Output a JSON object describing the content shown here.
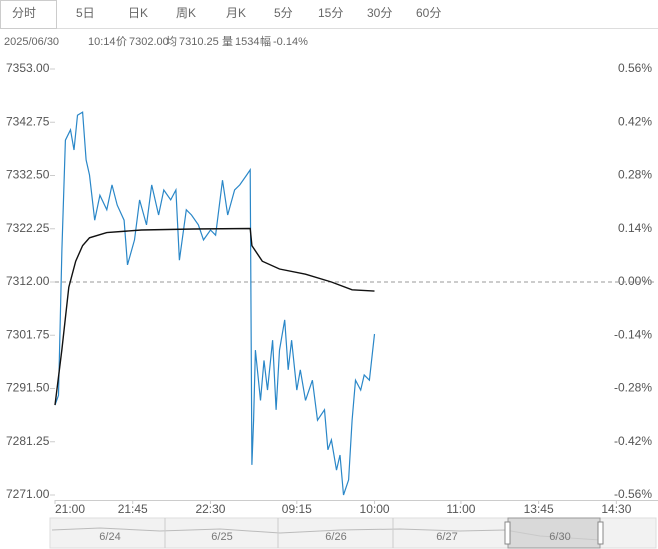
{
  "tabs": [
    "分时",
    "5日",
    "日K",
    "周K",
    "月K",
    "5分",
    "15分",
    "30分",
    "60分"
  ],
  "active_tab": 0,
  "info": {
    "date": "2025/06/30",
    "time": "10:14",
    "price_label": "价",
    "price": "7302.00",
    "avg_label": "均",
    "avg": "7310.25",
    "vol_label": "量",
    "vol": "1534",
    "amp_label": "幅",
    "amp": "-0.14%"
  },
  "chart_data": {
    "type": "line",
    "xlim": [
      0,
      330
    ],
    "xticks": [
      {
        "value": 0,
        "label": "21:00"
      },
      {
        "value": 45,
        "label": "21:45"
      },
      {
        "value": 90,
        "label": "22:30"
      },
      {
        "value": 140,
        "label": "09:15"
      },
      {
        "value": 185,
        "label": "10:00"
      },
      {
        "value": 235,
        "label": "11:00"
      },
      {
        "value": 280,
        "label": "13:45"
      },
      {
        "value": 325,
        "label": "14:30"
      }
    ],
    "ylim": [
      7271,
      7353
    ],
    "yticks": [
      {
        "value": 7271,
        "label": "7271.00"
      },
      {
        "value": 7281.25,
        "label": "7281.25"
      },
      {
        "value": 7291.5,
        "label": "7291.50"
      },
      {
        "value": 7301.75,
        "label": "7301.75"
      },
      {
        "value": 7312,
        "label": "7312.00"
      },
      {
        "value": 7322.25,
        "label": "7322.25"
      },
      {
        "value": 7332.5,
        "label": "7332.50"
      },
      {
        "value": 7342.75,
        "label": "7342.75"
      },
      {
        "value": 7353,
        "label": "7353.00"
      }
    ],
    "y2lim": [
      -0.56,
      0.56
    ],
    "y2ticks": [
      {
        "value": -0.56,
        "label": "-0.56%"
      },
      {
        "value": -0.42,
        "label": "-0.42%"
      },
      {
        "value": -0.28,
        "label": "-0.28%"
      },
      {
        "value": -0.14,
        "label": "-0.14%"
      },
      {
        "value": 0,
        "label": "0.00%"
      },
      {
        "value": 0.14,
        "label": "0.14%"
      },
      {
        "value": 0.28,
        "label": "0.28%"
      },
      {
        "value": 0.42,
        "label": "0.42%"
      },
      {
        "value": 0.56,
        "label": "0.56%"
      }
    ],
    "reference_line": 7312,
    "up_color": "#e02020",
    "down_color": "#1aa01a",
    "series": [
      {
        "color": "#2a87c8",
        "x": [
          0,
          2,
          4,
          6,
          9,
          11,
          13,
          16,
          18,
          20,
          23,
          26,
          30,
          33,
          36,
          40,
          42,
          46,
          49,
          53,
          56,
          60,
          63,
          67,
          70,
          72,
          76,
          79,
          83,
          86,
          90,
          93,
          97,
          100,
          104,
          107,
          111,
          113,
          114,
          115,
          116,
          119,
          121,
          123,
          126,
          128,
          130,
          133,
          135,
          137,
          140,
          142,
          145,
          149,
          152,
          156,
          158,
          160,
          163,
          165,
          167,
          170,
          172,
          174,
          177,
          179,
          182,
          185
        ],
        "values": [
          7288.3,
          7290.2,
          7318.2,
          7339.3,
          7341.3,
          7337.4,
          7344.1,
          7344.7,
          7335.5,
          7332.6,
          7323.9,
          7328.7,
          7325.9,
          7330.7,
          7326.8,
          7323.9,
          7315.3,
          7320.1,
          7327.8,
          7323,
          7330.7,
          7324.9,
          7329.7,
          7327.8,
          7329.7,
          7316.2,
          7325.9,
          7324.9,
          7323,
          7320.1,
          7322,
          7321,
          7331.6,
          7324.9,
          7329.7,
          7330.7,
          7332.6,
          7333.6,
          7276.8,
          7285.4,
          7298.9,
          7289.2,
          7296.9,
          7291.2,
          7300.8,
          7287.4,
          7298.9,
          7304.7,
          7295.1,
          7300.8,
          7291.2,
          7295.1,
          7289.2,
          7293.1,
          7285.4,
          7287.4,
          7279.7,
          7281.6,
          7275.8,
          7278.7,
          7271,
          7273.9,
          7285.4,
          7293.1,
          7291.2,
          7294.1,
          7293.1,
          7302
        ]
      },
      {
        "color": "#111111",
        "x": [
          0,
          4,
          8,
          12,
          16,
          20,
          30,
          50,
          80,
          113,
          114,
          120,
          130,
          145,
          160,
          172,
          185
        ],
        "values": [
          7288.3,
          7299,
          7311,
          7316,
          7319,
          7320.5,
          7321.5,
          7322,
          7322.2,
          7322.3,
          7319,
          7316,
          7314.5,
          7313.5,
          7312,
          7310.5,
          7310.25
        ]
      }
    ]
  },
  "navigator": {
    "labels": [
      "6/24",
      "6/25",
      "6/26",
      "6/27",
      "6/30"
    ]
  }
}
